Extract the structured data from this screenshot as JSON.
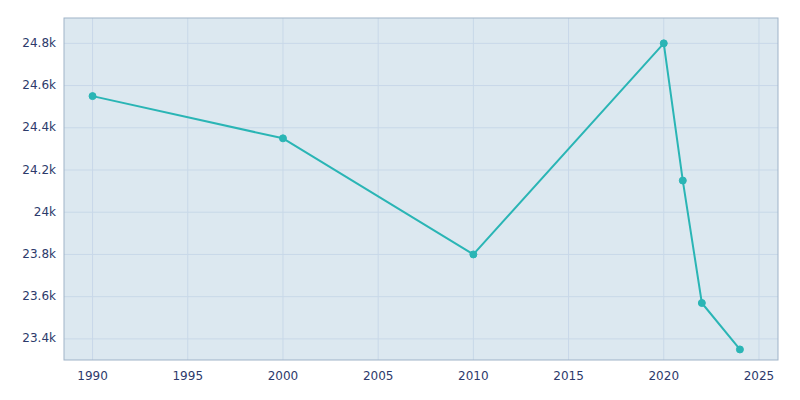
{
  "chart_data": {
    "type": "line",
    "x": [
      1990,
      2000,
      2010,
      2020,
      2021,
      2022,
      2024
    ],
    "values": [
      24550,
      24350,
      23800,
      24800,
      24150,
      23570,
      23350
    ],
    "color": "#2ab5b5",
    "marker": "circle",
    "xlim": [
      1988.5,
      2026
    ],
    "xticks": [
      1990,
      1995,
      2000,
      2005,
      2010,
      2015,
      2020,
      2025
    ],
    "ylim": [
      23300,
      24920
    ],
    "yticks": [
      {
        "value": 23400,
        "label": "23.4k"
      },
      {
        "value": 23600,
        "label": "23.6k"
      },
      {
        "value": 23800,
        "label": "23.8k"
      },
      {
        "value": 24000,
        "label": "24k"
      },
      {
        "value": 24200,
        "label": "24.2k"
      },
      {
        "value": 24400,
        "label": "24.4k"
      },
      {
        "value": 24600,
        "label": "24.6k"
      },
      {
        "value": 24800,
        "label": "24.8k"
      }
    ],
    "grid": true
  }
}
